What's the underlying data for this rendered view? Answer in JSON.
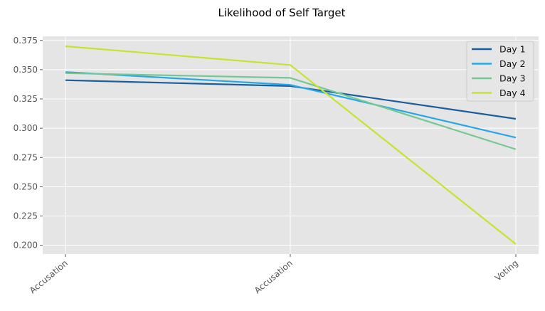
{
  "chart_data": {
    "type": "line",
    "title": "Likelihood of Self Target",
    "xlabel": "",
    "ylabel": "",
    "categories": [
      "Accusation",
      "Accusation",
      "Voting"
    ],
    "ylim": [
      0.1925,
      0.3785
    ],
    "yticks": [
      0.2,
      0.225,
      0.25,
      0.275,
      0.3,
      0.325,
      0.35,
      0.375
    ],
    "ytick_labels": [
      "0.200",
      "0.225",
      "0.250",
      "0.275",
      "0.300",
      "0.325",
      "0.350",
      "0.375"
    ],
    "grid": true,
    "legend_position": "top-right",
    "series": [
      {
        "name": "Day 1",
        "color": "#1a5e9c",
        "values": [
          0.341,
          0.336,
          0.308
        ]
      },
      {
        "name": "Day 2",
        "color": "#29a6e8",
        "values": [
          0.348,
          0.337,
          0.292
        ]
      },
      {
        "name": "Day 3",
        "color": "#76c893",
        "values": [
          0.347,
          0.343,
          0.282
        ]
      },
      {
        "name": "Day 4",
        "color": "#c5e430",
        "values": [
          0.37,
          0.354,
          0.201
        ]
      }
    ]
  }
}
